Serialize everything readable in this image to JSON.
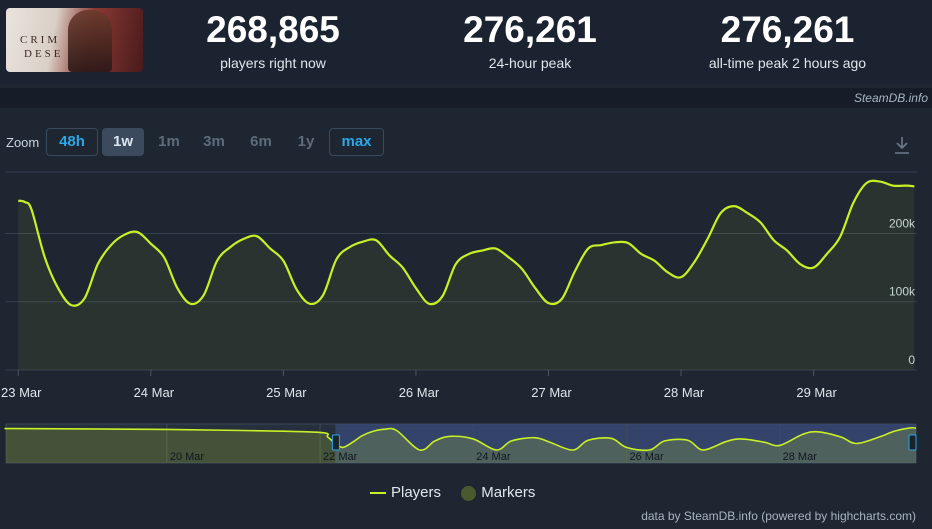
{
  "stats": [
    {
      "value": "268,865",
      "label": "players right now"
    },
    {
      "value": "276,261",
      "label": "24-hour peak"
    },
    {
      "value": "276,261",
      "label": "all-time peak 2 hours ago"
    }
  ],
  "cover": {
    "line1": "CRIM",
    "line2": "DESE"
  },
  "brand": "SteamDB.info",
  "zoom": {
    "label": "Zoom",
    "buttons": [
      "48h",
      "1w",
      "1m",
      "3m",
      "6m",
      "1y",
      "max"
    ],
    "enabled": [
      "48h",
      "1w",
      "max"
    ],
    "selected": "1w"
  },
  "legend": {
    "players": "Players",
    "markers": "Markers"
  },
  "credit": "data by SteamDB.info (powered by highcharts.com)",
  "colors": {
    "line": "#c8f025",
    "marker": "#4a5a2e",
    "navigator_selected": "#3a4a7a"
  },
  "chart_data": {
    "type": "line",
    "series": [
      {
        "name": "Players",
        "x": [
          23.0,
          23.05,
          23.1,
          23.2,
          23.3,
          23.4,
          23.5,
          23.6,
          23.7,
          23.8,
          23.9,
          24.0,
          24.1,
          24.2,
          24.3,
          24.4,
          24.5,
          24.6,
          24.7,
          24.8,
          24.9,
          25.0,
          25.1,
          25.2,
          25.3,
          25.4,
          25.5,
          25.6,
          25.7,
          25.8,
          25.9,
          26.0,
          26.1,
          26.2,
          26.3,
          26.4,
          26.5,
          26.6,
          26.7,
          26.8,
          26.9,
          27.0,
          27.1,
          27.2,
          27.3,
          27.4,
          27.5,
          27.6,
          27.7,
          27.8,
          27.9,
          28.0,
          28.1,
          28.2,
          28.3,
          28.4,
          28.5,
          28.6,
          28.7,
          28.8,
          28.9,
          29.0,
          29.1,
          29.2,
          29.3,
          29.4,
          29.5,
          29.6,
          29.7,
          29.76
        ],
        "y": [
          248,
          246,
          235,
          165,
          120,
          95,
          105,
          155,
          183,
          198,
          202,
          185,
          165,
          120,
          97,
          110,
          160,
          180,
          192,
          196,
          178,
          160,
          118,
          97,
          110,
          162,
          180,
          188,
          190,
          168,
          150,
          120,
          97,
          108,
          155,
          170,
          175,
          178,
          165,
          148,
          120,
          98,
          104,
          145,
          178,
          183,
          187,
          186,
          170,
          160,
          143,
          136,
          158,
          192,
          230,
          240,
          230,
          216,
          190,
          175,
          155,
          150,
          170,
          195,
          245,
          274,
          276,
          270,
          270,
          269
        ],
        "xlabel_note": "date in March (day of month + fraction)",
        "unit": "thousands of players"
      }
    ],
    "x_ticks": [
      "23 Mar",
      "24 Mar",
      "25 Mar",
      "26 Mar",
      "27 Mar",
      "28 Mar",
      "29 Mar"
    ],
    "x_tick_values": [
      23,
      24,
      25,
      26,
      27,
      28,
      29
    ],
    "y_ticks": [
      "0",
      "100k",
      "200k"
    ],
    "y_tick_values": [
      0,
      100,
      200
    ],
    "xlim": [
      22.9,
      29.78
    ],
    "ylim": [
      0,
      290
    ],
    "grid": true,
    "legend_position": "bottom-center",
    "navigator": {
      "ticks": [
        "20 Mar",
        "22 Mar",
        "24 Mar",
        "26 Mar",
        "28 Mar"
      ],
      "tick_values": [
        20,
        22,
        24,
        26,
        28
      ],
      "xlim": [
        17.9,
        29.78
      ],
      "ylim": [
        0,
        300
      ],
      "selected_range": [
        22.2,
        29.78
      ],
      "x": [
        17.9,
        18,
        19,
        20,
        21,
        22,
        22.1,
        22.2,
        22.3,
        22.45,
        22.55,
        22.7,
        22.85,
        23,
        23.3,
        23.5,
        23.7,
        24,
        24.3,
        24.5,
        24.8,
        25,
        25.3,
        25.5,
        25.8,
        26,
        26.3,
        26.5,
        26.8,
        27,
        27.3,
        27.5,
        27.8,
        28,
        28.3,
        28.5,
        28.8,
        29,
        29.3,
        29.5,
        29.7,
        29.78
      ],
      "y": [
        265,
        265,
        262,
        258,
        250,
        235,
        200,
        150,
        120,
        170,
        210,
        245,
        260,
        250,
        100,
        170,
        205,
        185,
        100,
        170,
        195,
        160,
        100,
        175,
        190,
        120,
        100,
        170,
        175,
        100,
        165,
        185,
        160,
        135,
        220,
        240,
        200,
        150,
        200,
        245,
        270,
        268
      ]
    }
  }
}
